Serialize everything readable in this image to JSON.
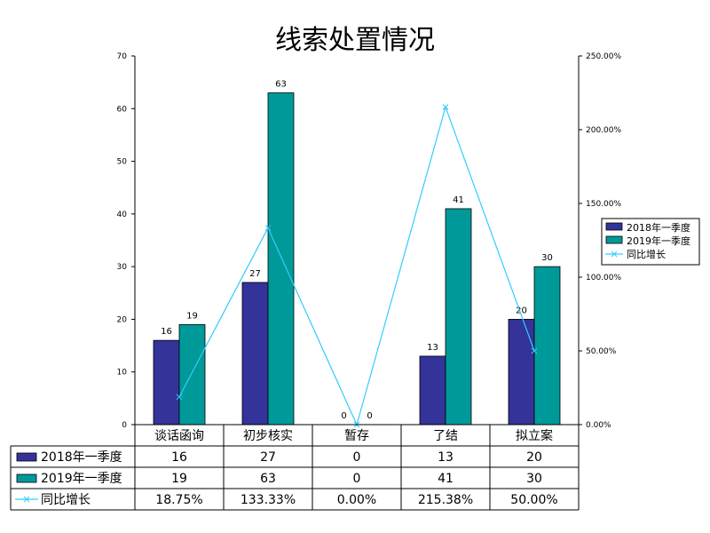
{
  "chart_data": {
    "type": "bar",
    "title": "线索处置情况",
    "categories": [
      "谈话函询",
      "初步核实",
      "暂存",
      "了结",
      "拟立案"
    ],
    "series": [
      {
        "name": "2018年一季度",
        "type": "bar",
        "values": [
          16,
          27,
          0,
          13,
          20
        ],
        "color": "#333399"
      },
      {
        "name": "2019年一季度",
        "type": "bar",
        "values": [
          19,
          63,
          0,
          41,
          30
        ],
        "color": "#009999"
      },
      {
        "name": "同比增长",
        "type": "line",
        "axis": "right",
        "values": [
          18.75,
          133.33,
          0.0,
          215.38,
          50.0
        ],
        "display": [
          "18.75%",
          "133.33%",
          "0.00%",
          "215.38%",
          "50.00%"
        ],
        "color": "#33ccff"
      }
    ],
    "ylim": [
      0,
      70
    ],
    "yticks": [
      "0",
      "10",
      "20",
      "30",
      "40",
      "50",
      "60",
      "70"
    ],
    "y2lim": [
      0,
      250
    ],
    "y2ticks": [
      "0.00%",
      "50.00%",
      "100.00%",
      "150.00%",
      "200.00%",
      "250.00%"
    ],
    "legend": "right",
    "grid": false,
    "data_table": true
  }
}
